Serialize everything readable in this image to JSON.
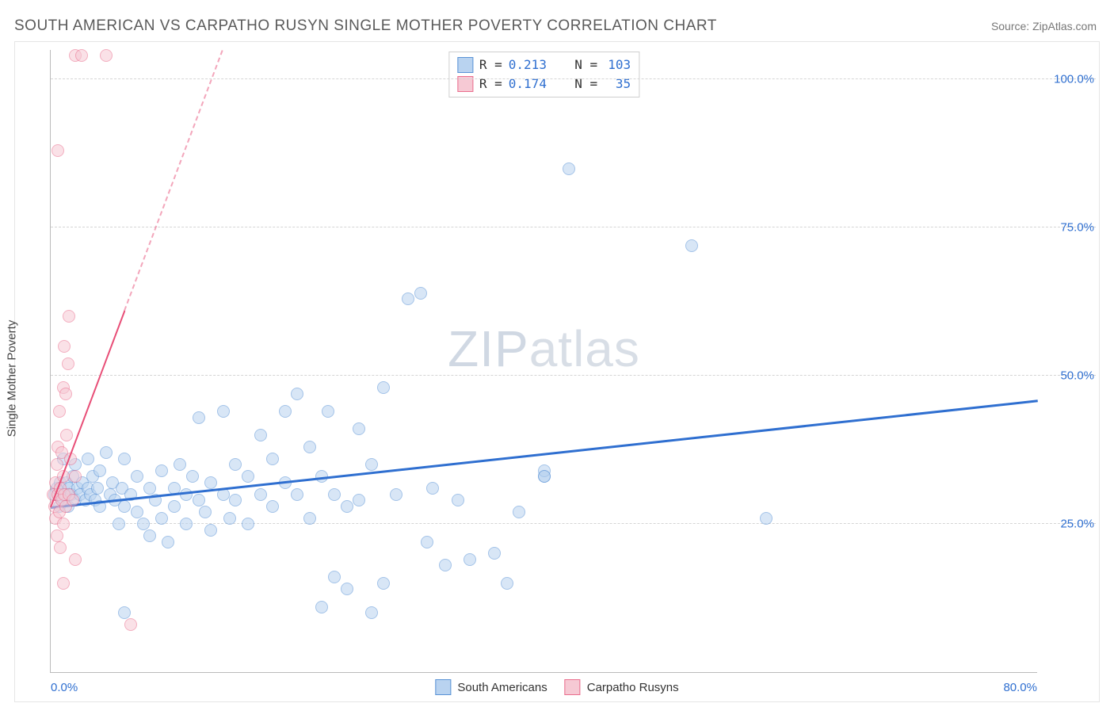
{
  "title": "SOUTH AMERICAN VS CARPATHO RUSYN SINGLE MOTHER POVERTY CORRELATION CHART",
  "source_label": "Source: ",
  "source_link": "ZipAtlas.com",
  "ylabel": "Single Mother Poverty",
  "watermark_bold": "ZIP",
  "watermark_thin": "atlas",
  "chart": {
    "type": "scatter",
    "xlim": [
      0,
      80
    ],
    "ylim": [
      0,
      105
    ],
    "xticks": [
      {
        "v": 0,
        "label": "0.0%"
      },
      {
        "v": 80,
        "label": "80.0%"
      }
    ],
    "yticks": [
      {
        "v": 25,
        "label": "25.0%"
      },
      {
        "v": 50,
        "label": "50.0%"
      },
      {
        "v": 75,
        "label": "75.0%"
      },
      {
        "v": 100,
        "label": "100.0%"
      }
    ],
    "grid_color": "#d5d5d5",
    "background_color": "#ffffff",
    "marker_radius": 8,
    "marker_border_width": 1.5,
    "series": [
      {
        "name": "South Americans",
        "fill": "#b9d3f0",
        "stroke": "#5a93d6",
        "fill_opacity": 0.55,
        "R": "0.213",
        "N": "103",
        "trend": {
          "y_at_x0": 28,
          "y_at_xmax": 46,
          "color": "#2f6fd0",
          "width": 3,
          "dash_cutover_x": 80
        },
        "points": [
          [
            0.3,
            30
          ],
          [
            0.5,
            31
          ],
          [
            0.7,
            28
          ],
          [
            0.8,
            32
          ],
          [
            1.0,
            29
          ],
          [
            1.0,
            36
          ],
          [
            1.2,
            30
          ],
          [
            1.3,
            32
          ],
          [
            1.4,
            28
          ],
          [
            1.5,
            31
          ],
          [
            1.7,
            30
          ],
          [
            1.8,
            33
          ],
          [
            2.0,
            29
          ],
          [
            2.0,
            35
          ],
          [
            2.2,
            31
          ],
          [
            2.4,
            30
          ],
          [
            2.6,
            32
          ],
          [
            2.8,
            29
          ],
          [
            3.0,
            36
          ],
          [
            3.0,
            31
          ],
          [
            3.2,
            30
          ],
          [
            3.4,
            33
          ],
          [
            3.6,
            29
          ],
          [
            3.8,
            31
          ],
          [
            4.0,
            28
          ],
          [
            4.0,
            34
          ],
          [
            4.5,
            37
          ],
          [
            4.8,
            30
          ],
          [
            5.0,
            32
          ],
          [
            5.2,
            29
          ],
          [
            5.5,
            25
          ],
          [
            5.8,
            31
          ],
          [
            6.0,
            28
          ],
          [
            6.0,
            36
          ],
          [
            6.5,
            30
          ],
          [
            7.0,
            27
          ],
          [
            7.0,
            33
          ],
          [
            7.5,
            25
          ],
          [
            8.0,
            31
          ],
          [
            8.0,
            23
          ],
          [
            8.5,
            29
          ],
          [
            9.0,
            34
          ],
          [
            9.0,
            26
          ],
          [
            9.5,
            22
          ],
          [
            10.0,
            31
          ],
          [
            10.0,
            28
          ],
          [
            10.5,
            35
          ],
          [
            11.0,
            30
          ],
          [
            11.0,
            25
          ],
          [
            11.5,
            33
          ],
          [
            12.0,
            29
          ],
          [
            12.0,
            43
          ],
          [
            12.5,
            27
          ],
          [
            13.0,
            32
          ],
          [
            13.0,
            24
          ],
          [
            14.0,
            30
          ],
          [
            14.0,
            44
          ],
          [
            14.5,
            26
          ],
          [
            15.0,
            35
          ],
          [
            15.0,
            29
          ],
          [
            16.0,
            33
          ],
          [
            16.0,
            25
          ],
          [
            17.0,
            30
          ],
          [
            17.0,
            40
          ],
          [
            18.0,
            28
          ],
          [
            18.0,
            36
          ],
          [
            19.0,
            44
          ],
          [
            19.0,
            32
          ],
          [
            20.0,
            47
          ],
          [
            20.0,
            30
          ],
          [
            21.0,
            38
          ],
          [
            21.0,
            26
          ],
          [
            22.0,
            11
          ],
          [
            22.0,
            33
          ],
          [
            22.5,
            44
          ],
          [
            23.0,
            30
          ],
          [
            23.0,
            16
          ],
          [
            24.0,
            28
          ],
          [
            24.0,
            14
          ],
          [
            25.0,
            41
          ],
          [
            25.0,
            29
          ],
          [
            26.0,
            10
          ],
          [
            26.0,
            35
          ],
          [
            27.0,
            15
          ],
          [
            27.0,
            48
          ],
          [
            28.0,
            30
          ],
          [
            29.0,
            63
          ],
          [
            30.0,
            64
          ],
          [
            30.5,
            22
          ],
          [
            31.0,
            31
          ],
          [
            32.0,
            18
          ],
          [
            33.0,
            29
          ],
          [
            34.0,
            19
          ],
          [
            36.0,
            20
          ],
          [
            37.0,
            15
          ],
          [
            38.0,
            27
          ],
          [
            40.0,
            33
          ],
          [
            40.0,
            34
          ],
          [
            42.0,
            85
          ],
          [
            52.0,
            72
          ],
          [
            58.0,
            26
          ],
          [
            40.0,
            33
          ],
          [
            6.0,
            10
          ]
        ]
      },
      {
        "name": "Carpatho Rusyns",
        "fill": "#f6c9d4",
        "stroke": "#ea6e8e",
        "fill_opacity": 0.55,
        "R": "0.174",
        "N": "35",
        "trend": {
          "y_at_x0": 28,
          "y_at_xmax": 470,
          "color": "#e84e77",
          "width": 2.5,
          "dash_cutover_x": 6
        },
        "points": [
          [
            0.2,
            30
          ],
          [
            0.3,
            28
          ],
          [
            0.4,
            32
          ],
          [
            0.4,
            26
          ],
          [
            0.5,
            35
          ],
          [
            0.5,
            23
          ],
          [
            0.6,
            30
          ],
          [
            0.6,
            38
          ],
          [
            0.7,
            27
          ],
          [
            0.7,
            44
          ],
          [
            0.8,
            31
          ],
          [
            0.8,
            21
          ],
          [
            0.9,
            29
          ],
          [
            0.9,
            37
          ],
          [
            1.0,
            33
          ],
          [
            1.0,
            25
          ],
          [
            1.0,
            48
          ],
          [
            1.1,
            30
          ],
          [
            1.1,
            55
          ],
          [
            1.2,
            28
          ],
          [
            1.2,
            47
          ],
          [
            1.3,
            40
          ],
          [
            1.4,
            52
          ],
          [
            1.5,
            30
          ],
          [
            1.5,
            60
          ],
          [
            1.6,
            36
          ],
          [
            1.8,
            29
          ],
          [
            2.0,
            33
          ],
          [
            2.0,
            19
          ],
          [
            1.0,
            15
          ],
          [
            2.0,
            104
          ],
          [
            2.5,
            104
          ],
          [
            0.6,
            88
          ],
          [
            4.5,
            104
          ],
          [
            6.5,
            8
          ]
        ]
      }
    ]
  },
  "stats_box_label_R": "R =",
  "stats_box_label_N": "N =",
  "legend_items": [
    {
      "label": "South Americans",
      "fill": "#b9d3f0",
      "stroke": "#5a93d6"
    },
    {
      "label": "Carpatho Rusyns",
      "fill": "#f6c9d4",
      "stroke": "#ea6e8e"
    }
  ]
}
